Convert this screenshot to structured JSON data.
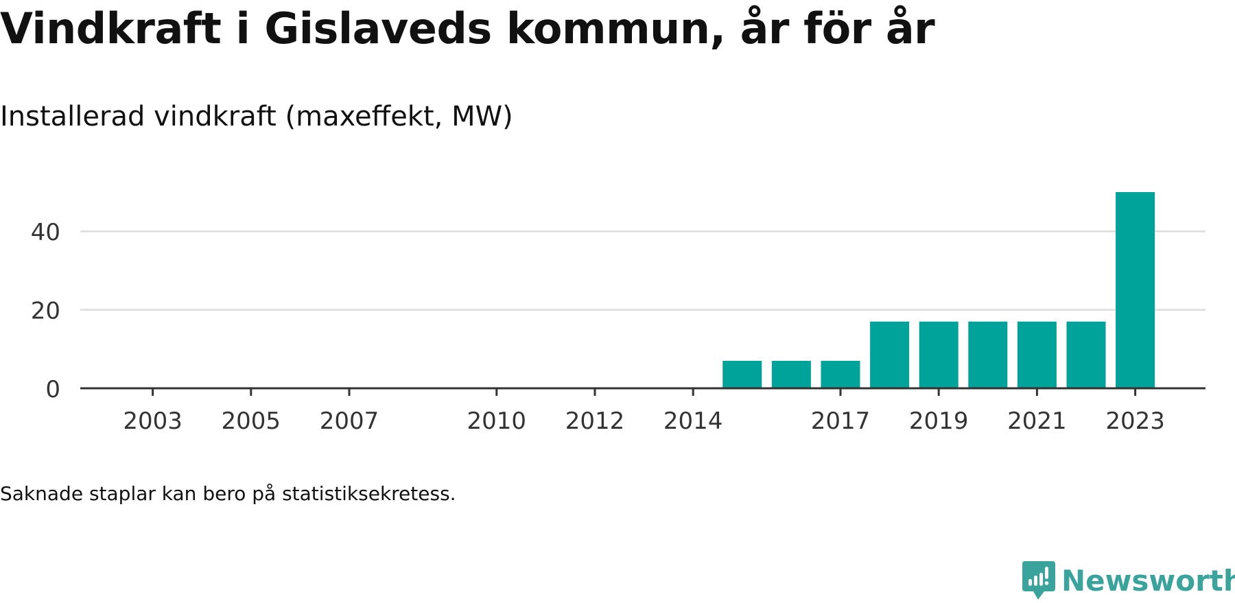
{
  "chart_data": {
    "type": "bar",
    "title": "Vindkraft i Gislaveds kommun, år för år",
    "subtitle": "Installerad vindkraft (maxeffekt, MW)",
    "xlabel": "",
    "ylabel": "",
    "categories": [
      "2002",
      "2003",
      "2004",
      "2005",
      "2006",
      "2007",
      "2008",
      "2009",
      "2010",
      "2011",
      "2012",
      "2013",
      "2014",
      "2015",
      "2016",
      "2017",
      "2018",
      "2019",
      "2020",
      "2021",
      "2022",
      "2023"
    ],
    "values": [
      null,
      0,
      null,
      0,
      null,
      0,
      null,
      null,
      0,
      null,
      0,
      null,
      0,
      7,
      7,
      7,
      17,
      17,
      17,
      17,
      17,
      50
    ],
    "x_tick_labels": [
      "2003",
      "2005",
      "2007",
      "2010",
      "2012",
      "2014",
      "2017",
      "2019",
      "2021",
      "2023"
    ],
    "y_ticks": [
      0,
      20,
      40
    ],
    "ylim": [
      0,
      50
    ],
    "grid": true,
    "bar_color": "#00a39a",
    "note": "Saknade staplar kan bero på statistiksekretess."
  },
  "brand": {
    "name": "Newsworthy",
    "icon": "newsworthy-logo-icon",
    "color": "#3aa39b"
  }
}
